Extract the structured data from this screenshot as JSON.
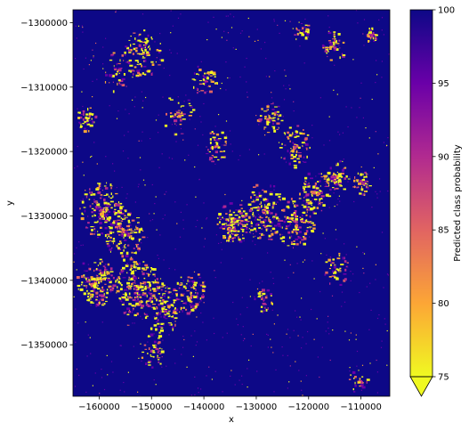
{
  "chart_data": {
    "type": "heatmap",
    "title": "",
    "xlabel": "x",
    "ylabel": "y",
    "xlim": [
      -165000,
      -104500
    ],
    "ylim": [
      -1358000,
      -1298000
    ],
    "x_ticks": [
      -160000,
      -150000,
      -140000,
      -130000,
      -120000,
      -110000
    ],
    "x_tick_labels": [
      "−160000",
      "−150000",
      "−140000",
      "−130000",
      "−120000",
      "−110000"
    ],
    "y_ticks": [
      -1300000,
      -1310000,
      -1320000,
      -1330000,
      -1340000,
      -1350000
    ],
    "y_tick_labels": [
      "−1300000",
      "−1310000",
      "−1320000",
      "−1330000",
      "−1340000",
      "−1350000"
    ],
    "colorbar": {
      "label": "Predicted class probability",
      "min": 75,
      "max": 100,
      "extend": "min",
      "ticks": [
        75,
        80,
        85,
        90,
        95,
        100
      ],
      "tick_labels": [
        "75",
        "80",
        "85",
        "90",
        "95",
        "100"
      ],
      "colormap": "plasma",
      "colors": [
        "#f0f921",
        "#fca636",
        "#e16462",
        "#b12a90",
        "#6a00a8",
        "#0d0887"
      ]
    },
    "background_value": 100
  }
}
